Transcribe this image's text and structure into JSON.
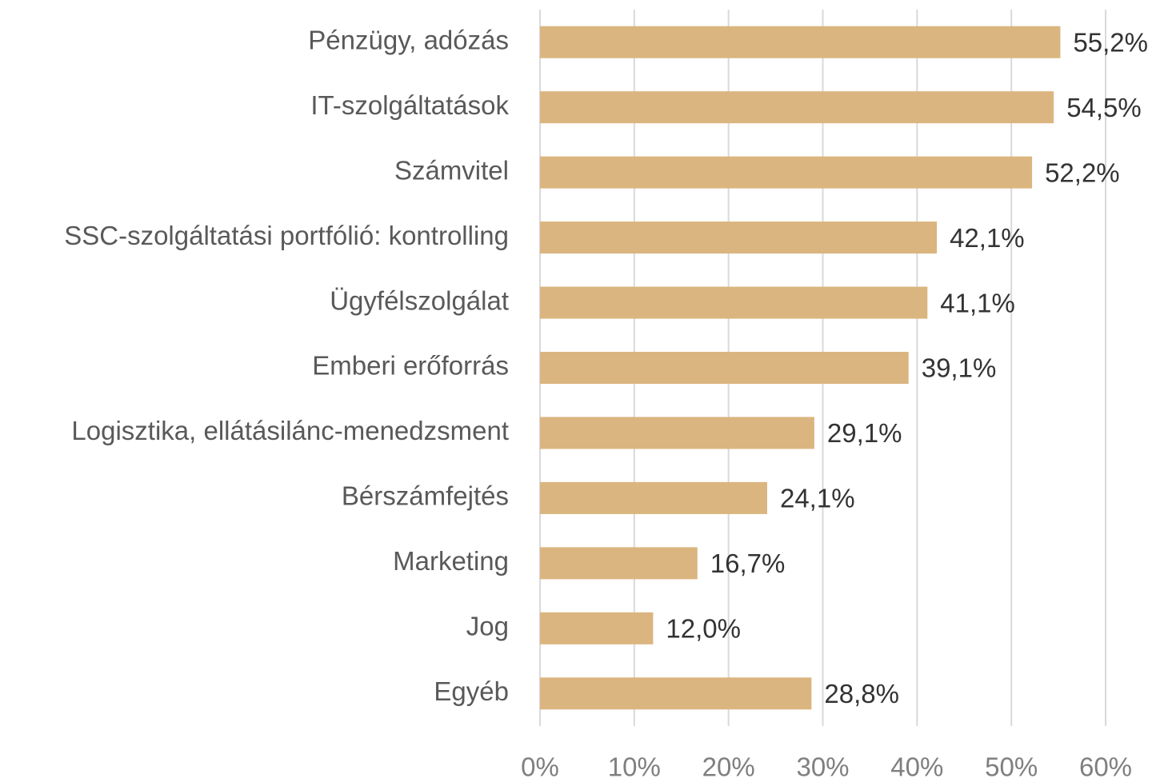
{
  "chart_data": {
    "type": "bar",
    "orientation": "horizontal",
    "categories": [
      "Pénzügy, adózás",
      "IT-szolgáltatások",
      "Számvitel",
      "SSC-szolgáltatási portfólió: kontrolling",
      "Ügyfélszolgálat",
      "Emberi erőforrás",
      "Logisztika, ellátásilánc-menedzsment",
      "Bérszámfejtés",
      "Marketing",
      "Jog",
      "Egyéb"
    ],
    "values": [
      55.2,
      54.5,
      52.2,
      42.1,
      41.1,
      39.1,
      29.1,
      24.1,
      16.7,
      12.0,
      28.8
    ],
    "value_labels": [
      "55,2%",
      "54,5%",
      "52,2%",
      "42,1%",
      "41,1%",
      "39,1%",
      "29,1%",
      "24,1%",
      "16,7%",
      "12,0%",
      "28,8%"
    ],
    "color": "#dbb57f",
    "xlim": [
      0,
      60
    ],
    "xticks": [
      {
        "value": 0,
        "label": "0%"
      },
      {
        "value": 10,
        "label": "10%"
      },
      {
        "value": 20,
        "label": "20%"
      },
      {
        "value": 30,
        "label": "30%"
      },
      {
        "value": 40,
        "label": "40%"
      },
      {
        "value": 50,
        "label": "50%"
      },
      {
        "value": 60,
        "label": "60%"
      }
    ],
    "grid": true
  }
}
